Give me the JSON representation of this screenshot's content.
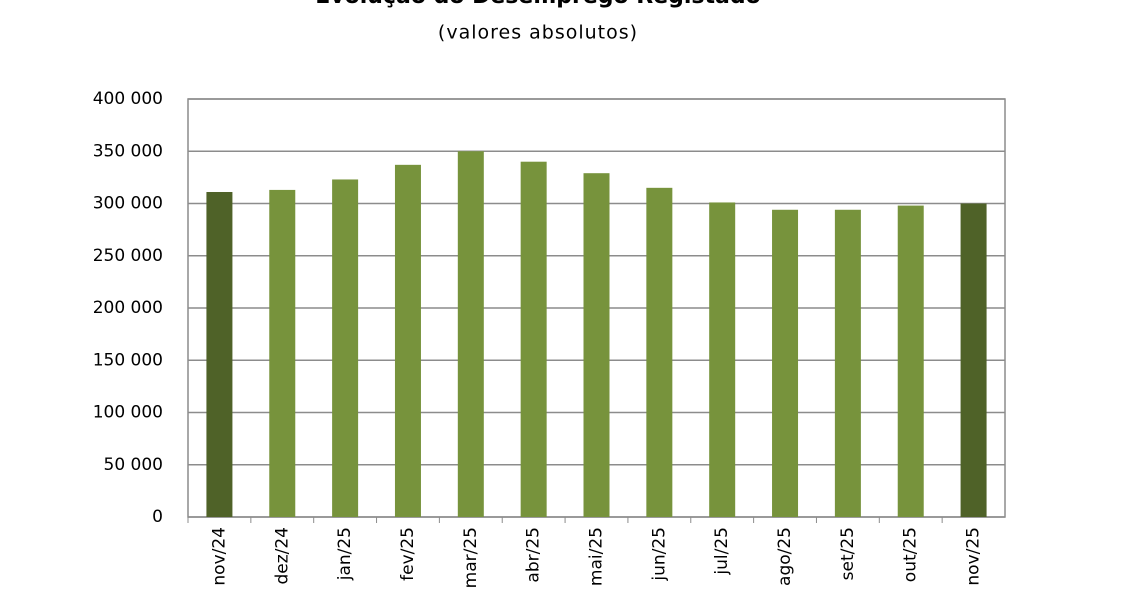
{
  "chart_data": {
    "type": "bar",
    "title": "Evolução do Desemprego Registado",
    "subtitle": "(valores absolutos)",
    "categories": [
      "nov/24",
      "dez/24",
      "jan/25",
      "fev/25",
      "mar/25",
      "abr/25",
      "mai/25",
      "jun/25",
      "jul/25",
      "ago/25",
      "set/25",
      "out/25",
      "nov/25"
    ],
    "values": [
      311000,
      313000,
      323000,
      337000,
      350000,
      340000,
      329000,
      315000,
      301000,
      294000,
      294000,
      298000,
      300000
    ],
    "colors": [
      "#4f6228",
      "#77933c",
      "#77933c",
      "#77933c",
      "#77933c",
      "#77933c",
      "#77933c",
      "#77933c",
      "#77933c",
      "#77933c",
      "#77933c",
      "#77933c",
      "#4f6228"
    ],
    "ylim": [
      0,
      400000
    ],
    "yticks": [
      0,
      {
        "value": 50000,
        "label": "50 000"
      },
      {
        "value": 100000,
        "label": "100 000"
      },
      {
        "value": 150000,
        "label": "150 000"
      },
      {
        "value": 200000,
        "label": "200 000"
      },
      {
        "value": 250000,
        "label": "250 000"
      },
      {
        "value": 300000,
        "label": "300 000"
      },
      {
        "value": 350000,
        "label": "350 000"
      },
      {
        "value": 400000,
        "label": "400 000"
      }
    ],
    "grid": true
  }
}
